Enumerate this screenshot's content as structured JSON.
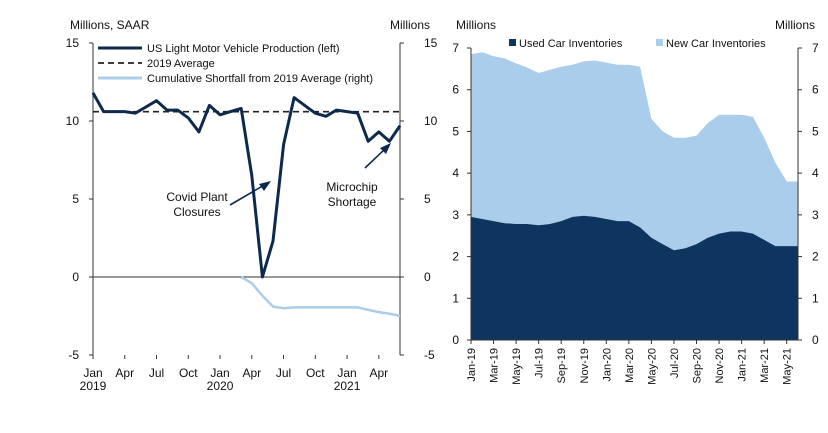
{
  "chart_data": [
    {
      "type": "line",
      "left_axis_label": "Millions, SAAR",
      "right_axis_label": "Millions",
      "ylim": [
        -5,
        15
      ],
      "y_ticks": [
        -5,
        0,
        5,
        10,
        15
      ],
      "x_tick_labels": [
        "Jan",
        "Apr",
        "Jul",
        "Oct",
        "Jan",
        "Apr",
        "Jul",
        "Oct",
        "Jan",
        "Apr"
      ],
      "x_year_labels": [
        "2019",
        "2020",
        "2021"
      ],
      "x_months": [
        "Jan 2019",
        "Feb 2019",
        "Mar 2019",
        "Apr 2019",
        "May 2019",
        "Jun 2019",
        "Jul 2019",
        "Aug 2019",
        "Sep 2019",
        "Oct 2019",
        "Nov 2019",
        "Dec 2019",
        "Jan 2020",
        "Feb 2020",
        "Mar 2020",
        "Apr 2020",
        "May 2020",
        "Jun 2020",
        "Jul 2020",
        "Aug 2020",
        "Sep 2020",
        "Oct 2020",
        "Nov 2020",
        "Dec 2020",
        "Jan 2021",
        "Feb 2021",
        "Mar 2021",
        "Apr 2021",
        "May 2021",
        "Jun 2021"
      ],
      "series": [
        {
          "name": "US Light Motor Vehicle Production (left)",
          "axis": "left",
          "color": "#0d2a4d",
          "style": "solid",
          "values": [
            11.8,
            10.6,
            10.6,
            10.6,
            10.5,
            10.9,
            11.3,
            10.7,
            10.7,
            10.2,
            9.3,
            11.0,
            10.4,
            10.6,
            10.8,
            6.5,
            0.0,
            2.3,
            8.5,
            11.5,
            11.0,
            10.5,
            10.3,
            10.7,
            10.6,
            10.5,
            8.7,
            9.3,
            8.7,
            9.7
          ]
        },
        {
          "name": "2019 Average",
          "axis": "left",
          "color": "#222222",
          "style": "dashed",
          "value": 10.6
        },
        {
          "name": "Cumulative Shortfall from 2019 Average (right)",
          "axis": "right",
          "color": "#a9cdea",
          "style": "solid",
          "start_index": 14,
          "values": [
            0.0,
            -0.4,
            -1.2,
            -1.9,
            -2.0,
            -1.95,
            -1.95,
            -1.95,
            -1.95,
            -1.95,
            -1.95,
            -1.95,
            -2.1,
            -2.25,
            -2.35,
            -2.5
          ]
        }
      ],
      "annotations": [
        {
          "text_lines": [
            "Covid Plant",
            "Closures"
          ],
          "points_to_month": "Jun 2020"
        },
        {
          "text_lines": [
            "Microchip",
            "Shortage"
          ],
          "points_to_month": "May 2021"
        }
      ]
    },
    {
      "type": "area",
      "left_axis_label": "Millions",
      "right_axis_label": "Millions",
      "ylim": [
        0,
        7
      ],
      "y_ticks": [
        0,
        1,
        2,
        3,
        4,
        5,
        6,
        7
      ],
      "x_tick_labels": [
        "Jan-19",
        "Mar-19",
        "May-19",
        "Jul-19",
        "Sep-19",
        "Nov-19",
        "Jan-20",
        "Mar-20",
        "May-20",
        "Jul-20",
        "Sep-20",
        "Nov-20",
        "Jan-21",
        "Mar-21",
        "May-21"
      ],
      "x_months": [
        "Jan-19",
        "Feb-19",
        "Mar-19",
        "Apr-19",
        "May-19",
        "Jun-19",
        "Jul-19",
        "Aug-19",
        "Sep-19",
        "Oct-19",
        "Nov-19",
        "Dec-19",
        "Jan-20",
        "Feb-20",
        "Mar-20",
        "Apr-20",
        "May-20",
        "Jun-20",
        "Jul-20",
        "Aug-20",
        "Sep-20",
        "Oct-20",
        "Nov-20",
        "Dec-20",
        "Jan-21",
        "Feb-21",
        "Mar-21",
        "Apr-21",
        "May-21",
        "Jun-21"
      ],
      "stacked": true,
      "legend_position": "top",
      "series": [
        {
          "name": "Used Car Inventories",
          "color": "#0d3560",
          "values": [
            2.95,
            2.9,
            2.85,
            2.8,
            2.78,
            2.78,
            2.75,
            2.78,
            2.85,
            2.95,
            2.98,
            2.95,
            2.9,
            2.85,
            2.85,
            2.7,
            2.45,
            2.3,
            2.15,
            2.2,
            2.3,
            2.45,
            2.55,
            2.6,
            2.6,
            2.55,
            2.4,
            2.25,
            2.25,
            2.25
          ]
        },
        {
          "name": "New Car Inventories",
          "color": "#a9cdea",
          "values": [
            3.9,
            4.0,
            3.95,
            3.95,
            3.85,
            3.75,
            3.65,
            3.7,
            3.7,
            3.65,
            3.7,
            3.75,
            3.75,
            3.75,
            3.75,
            3.85,
            2.85,
            2.7,
            2.7,
            2.65,
            2.6,
            2.75,
            2.85,
            2.8,
            2.8,
            2.8,
            2.45,
            2.0,
            1.55,
            1.55
          ]
        }
      ]
    }
  ]
}
